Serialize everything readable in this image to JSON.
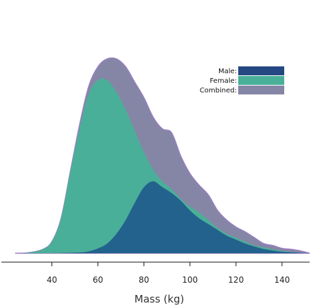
{
  "chart_data": {
    "type": "area",
    "title": "",
    "xlabel": "Mass (kg)",
    "ylabel": "",
    "xlim": [
      24,
      152
    ],
    "ylim": [
      0,
      1
    ],
    "xticks": [
      40,
      60,
      80,
      100,
      120,
      140
    ],
    "grid": false,
    "legend_position": "top-right",
    "series": [
      {
        "name": "Combined:",
        "color": "#8586a6",
        "stroke": "#9a7fc0",
        "x": [
          24,
          30,
          36,
          40,
          44,
          48,
          52,
          56,
          60,
          64,
          68,
          72,
          76,
          80,
          84,
          88,
          92,
          96,
          100,
          104,
          108,
          112,
          116,
          120,
          124,
          128,
          132,
          136,
          140,
          144,
          148,
          152
        ],
        "y": [
          0.0,
          0.003,
          0.02,
          0.06,
          0.18,
          0.42,
          0.66,
          0.86,
          0.96,
          1.0,
          1.0,
          0.96,
          0.88,
          0.8,
          0.7,
          0.64,
          0.62,
          0.5,
          0.41,
          0.35,
          0.3,
          0.22,
          0.17,
          0.135,
          0.11,
          0.08,
          0.05,
          0.04,
          0.025,
          0.02,
          0.012,
          0.0
        ]
      },
      {
        "name": "Female:",
        "color": "#4aaf98",
        "x": [
          24,
          30,
          36,
          40,
          44,
          48,
          52,
          56,
          60,
          64,
          68,
          72,
          76,
          80,
          84,
          88,
          92,
          96,
          100,
          104,
          108,
          112,
          116,
          120,
          124,
          128,
          132,
          136,
          140,
          144,
          148,
          152
        ],
        "y": [
          0.0,
          0.003,
          0.02,
          0.06,
          0.18,
          0.42,
          0.64,
          0.82,
          0.89,
          0.89,
          0.83,
          0.74,
          0.63,
          0.52,
          0.43,
          0.37,
          0.33,
          0.28,
          0.24,
          0.21,
          0.17,
          0.13,
          0.1,
          0.08,
          0.06,
          0.04,
          0.03,
          0.02,
          0.012,
          0.006,
          0.002,
          0.0
        ]
      },
      {
        "name": "Male:",
        "color": "#23628d",
        "x": [
          36,
          44,
          52,
          56,
          60,
          64,
          68,
          72,
          76,
          80,
          84,
          88,
          92,
          96,
          100,
          104,
          108,
          112,
          116,
          120,
          124,
          128,
          132,
          136,
          140,
          144,
          148,
          152
        ],
        "y": [
          0.0,
          0.001,
          0.004,
          0.01,
          0.025,
          0.05,
          0.1,
          0.17,
          0.26,
          0.34,
          0.37,
          0.34,
          0.31,
          0.27,
          0.22,
          0.18,
          0.15,
          0.12,
          0.09,
          0.07,
          0.05,
          0.035,
          0.022,
          0.014,
          0.008,
          0.005,
          0.002,
          0.0
        ]
      }
    ],
    "legend": [
      {
        "label": "Male:",
        "color": "#254883"
      },
      {
        "label": "Female:",
        "color": "#4aaf98"
      },
      {
        "label": "Combined:",
        "color": "#8586a6"
      }
    ]
  }
}
